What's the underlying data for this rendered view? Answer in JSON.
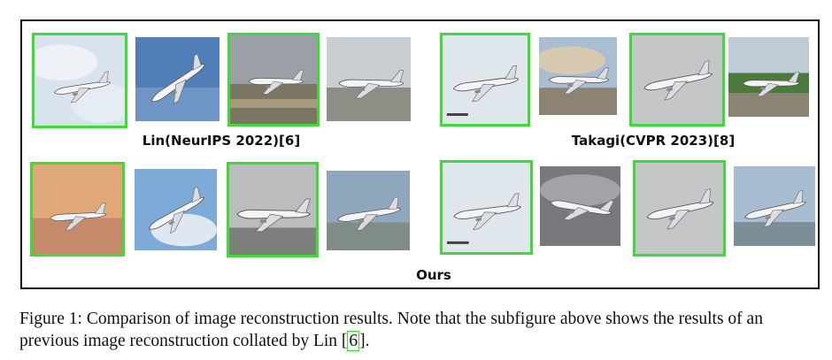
{
  "figure": {
    "label_top_left": "Lin(NeurIPS 2022)[6]",
    "label_top_right": "Takagi(CVPR 2023)[8]",
    "label_bottom": "Ours",
    "highlight_color": "#3cdc32"
  },
  "caption": {
    "part1": "Figure 1: Comparison of image reconstruction results. Note that the subfigure above shows the results of an previous image reconstruction collated by Lin [",
    "cite": "6",
    "part2": "]."
  }
}
